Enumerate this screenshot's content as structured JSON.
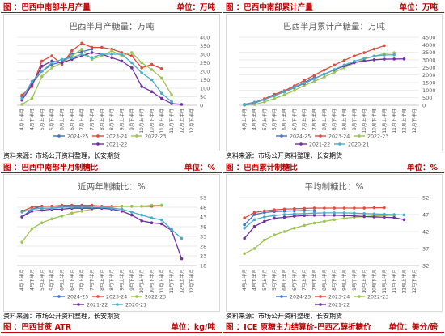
{
  "panels": [
    {
      "header": {
        "title": "图 ：巴西中南部半月产量",
        "unit": "单位：万吨"
      },
      "source": "资料来源：市场公开资料整理，长安期货",
      "chart_data": {
        "type": "line",
        "title": "巴西半月产糖量：万吨",
        "categories": [
          "4月上半月",
          "4月下半月",
          "5月上半月",
          "5月下半月",
          "6月上半月",
          "6月下半月",
          "7月上半月",
          "7月下半月",
          "8月上半月",
          "8月下半月",
          "9月上半月",
          "9月下半月",
          "10月上半月",
          "10月下半月",
          "11月上半月",
          "11月下半月",
          "12月上半月",
          "12月下半月"
        ],
        "ylim": [
          0,
          400
        ],
        "yticks": [
          0,
          50,
          100,
          150,
          200,
          250,
          300,
          350,
          400
        ],
        "legend_position": "bottom",
        "series": [
          {
            "name": "2024-25",
            "color": "#4472c4",
            "values": [
              50,
              130,
              200,
              240,
              255,
              300,
              315,
              330,
              null,
              null,
              null,
              null,
              null,
              null,
              null,
              null,
              null,
              null
            ]
          },
          {
            "name": "2023-24",
            "color": "#e04a3f",
            "values": [
              60,
              110,
              260,
              290,
              240,
              320,
              365,
              340,
              340,
              330,
              310,
              290,
              220,
              240,
              215,
              null,
              null,
              null
            ]
          },
          {
            "name": "2022-23",
            "color": "#9bc455",
            "values": [
              5,
              40,
              170,
              220,
              250,
              290,
              330,
              270,
              290,
              320,
              290,
              310,
              250,
              210,
              160,
              60,
              null,
              null
            ]
          },
          {
            "name": "2021-22",
            "color": "#7030a0",
            "values": [
              30,
              120,
              230,
              260,
              250,
              270,
              290,
              310,
              300,
              280,
              260,
              220,
              110,
              80,
              40,
              10,
              5,
              null
            ]
          },
          {
            "name": "",
            "color": "#4bacc6",
            "values": [
              40,
              140,
              200,
              250,
              270,
              280,
              300,
              280,
              300,
              300,
              300,
              250,
              190,
              150,
              70,
              20,
              null,
              null
            ]
          }
        ]
      }
    },
    {
      "header": {
        "title": "图 ：巴西中南部累计产量",
        "unit": "单位：万吨"
      },
      "source": "资料来源：市场公开资料整理，长安期货",
      "chart_data": {
        "type": "line",
        "title": "巴西半月累计产糖量：万吨",
        "categories": [
          "4月上半月",
          "4月下半月",
          "5月上半月",
          "5月下半月",
          "6月上半月",
          "6月下半月",
          "7月上半月",
          "7月下半月",
          "8月上半月",
          "8月下半月",
          "9月上半月",
          "9月下半月",
          "10月上半月",
          "10月下半月",
          "11月上半月",
          "11月下半月",
          "12月上半月",
          "12月下半月"
        ],
        "ylim": [
          0,
          4500
        ],
        "yticks": [
          0,
          500,
          1000,
          1500,
          2000,
          2500,
          3000,
          3500,
          4000,
          4500
        ],
        "legend_position": "bottom",
        "series": [
          {
            "name": "2024-25",
            "color": "#4472c4",
            "values": [
              60,
              200,
              400,
              650,
              900,
              1200,
              1500,
              1850,
              null,
              null,
              null,
              null,
              null,
              null,
              null,
              null,
              null,
              null
            ]
          },
          {
            "name": "2023-24",
            "color": "#e04a3f",
            "values": [
              60,
              170,
              430,
              720,
              960,
              1280,
              1650,
              1990,
              2330,
              2660,
              2970,
              3260,
              3480,
              3720,
              3940,
              null,
              null,
              null
            ]
          },
          {
            "name": "2022-23",
            "color": "#9bc455",
            "values": [
              5,
              50,
              220,
              440,
              690,
              980,
              1310,
              1580,
              1870,
              2190,
              2480,
              2790,
              3040,
              3250,
              3410,
              3470,
              null,
              null
            ]
          },
          {
            "name": "2021-22",
            "color": "#7030a0",
            "values": [
              30,
              150,
              380,
              640,
              890,
              1160,
              1450,
              1760,
              2060,
              2340,
              2600,
              2820,
              2930,
              3010,
              3050,
              3060,
              3065,
              null
            ]
          },
          {
            "name": "2020-21",
            "color": "#4bacc6",
            "values": [
              40,
              180,
              380,
              630,
              900,
              1180,
              1480,
              1760,
              2060,
              2360,
              2660,
              2910,
              3100,
              3250,
              3320,
              3340,
              null,
              null
            ]
          }
        ]
      }
    },
    {
      "header": {
        "title": "图 ：巴西中南部半月制糖比",
        "unit": "单位：%"
      },
      "source": "资料来源：市场公开资料整理，长安期货",
      "chart_data": {
        "type": "line",
        "title": "近两年制糖比：%",
        "categories": [
          "4月上半月",
          "4月下半月",
          "5月上半月",
          "5月下半月",
          "6月上半月",
          "6月下半月",
          "7月上半月",
          "7月下半月",
          "8月上半月",
          "8月下半月",
          "9月上半月",
          "9月下半月",
          "10月上半月",
          "10月下半月",
          "11月上半月",
          "11月下半月",
          "12月上半月",
          "12月下半月"
        ],
        "ylim": [
          18,
          53
        ],
        "yticks": [
          18,
          23,
          28,
          33,
          38,
          43,
          48,
          53
        ],
        "legend_position": "bottom",
        "series": [
          {
            "name": "2024-25",
            "color": "#4472c4",
            "values": [
              43,
              47,
              48.5,
              48.5,
              48.5,
              48.5,
              48.5,
              48,
              null,
              null,
              null,
              null,
              null,
              null,
              null,
              null,
              null,
              null
            ]
          },
          {
            "name": "2023-24",
            "color": "#e04a3f",
            "values": [
              46,
              48,
              48.5,
              48.5,
              49,
              49,
              49,
              49,
              48.5,
              48.5,
              48.5,
              48.5,
              48.5,
              48.5,
              49,
              null,
              null,
              null
            ]
          },
          {
            "name": "2022-23",
            "color": "#9bc455",
            "values": [
              30,
              37,
              40,
              42,
              43.5,
              45,
              46,
              47,
              48,
              48,
              48.5,
              48.5,
              48.5,
              49,
              49,
              null,
              null,
              null
            ]
          },
          {
            "name": "2021-22",
            "color": "#7030a0",
            "values": [
              43,
              46,
              46.5,
              47,
              47,
              47.5,
              47.5,
              47.5,
              47.5,
              47,
              46,
              44,
              41,
              40,
              39.5,
              36,
              21.5,
              null
            ]
          },
          {
            "name": "2020-21",
            "color": "#4bacc6",
            "values": [
              45.5,
              47,
              47.5,
              47.5,
              48,
              48,
              48,
              48,
              48,
              47.5,
              47,
              45.5,
              44,
              42.5,
              41.5,
              36.5,
              32,
              null
            ]
          }
        ]
      }
    },
    {
      "header": {
        "title": "图 ：巴西累计制糖比",
        "unit": "单位：%"
      },
      "source": "资料来源：市场公开资料整理，长安期货",
      "chart_data": {
        "type": "line",
        "title": "平均制糖比：%",
        "categories": [
          "4月上半月",
          "4月下半月",
          "5月上半月",
          "5月下半月",
          "6月上半月",
          "6月下半月",
          "7月上半月",
          "7月下半月",
          "8月上半月",
          "8月下半月",
          "9月上半月",
          "9月下半月",
          "10月上半月",
          "10月下半月",
          "11月上半月",
          "11月下半月",
          "12月上半月",
          "12月下半月"
        ],
        "ylim": [
          32,
          52
        ],
        "yticks": [
          32,
          37,
          42,
          47,
          52
        ],
        "legend_position": "bottom",
        "series": [
          {
            "name": "2024-25",
            "color": "#4472c4",
            "values": [
              44,
              47,
              47.6,
              47.9,
              48,
              48.1,
              48.2,
              48.1,
              null,
              null,
              null,
              null,
              null,
              null,
              null,
              null,
              null,
              null
            ]
          },
          {
            "name": "2023-24",
            "color": "#e04a3f",
            "values": [
              46,
              47.6,
              48.1,
              48.4,
              48.6,
              48.7,
              48.8,
              48.9,
              48.9,
              48.9,
              48.9,
              48.9,
              48.9,
              49,
              49,
              null,
              null,
              null
            ]
          },
          {
            "name": "2022-23",
            "color": "#9bc455",
            "values": [
              35.5,
              37,
              39.5,
              41,
              42,
              43,
              43.8,
              44.5,
              45,
              45.5,
              45.9,
              46.2,
              46.4,
              46.6,
              46.7,
              46.8,
              null,
              null
            ]
          },
          {
            "name": "2021-22",
            "color": "#7030a0",
            "values": [
              40,
              43.5,
              45,
              45.9,
              46.2,
              46.5,
              46.7,
              46.8,
              46.8,
              46.8,
              46.7,
              46.6,
              46.4,
              46.3,
              46.2,
              46.1,
              45.5,
              null
            ]
          },
          {
            "name": "",
            "color": "#4bacc6",
            "values": [
              43,
              45.5,
              46.3,
              46.7,
              47,
              47.2,
              47.3,
              47.4,
              47.5,
              47.5,
              47.5,
              47.4,
              47.3,
              47.2,
              47.1,
              47,
              46.9,
              null
            ]
          }
        ]
      }
    }
  ],
  "bottom_headers": [
    {
      "title": "图 ：巴西甘蔗 ATR",
      "unit": "单位：kg/吨"
    },
    {
      "title": "图 ：ICE 原糖主力结算价-巴西乙醇折糖价",
      "unit": "单位：美分/磅"
    }
  ]
}
